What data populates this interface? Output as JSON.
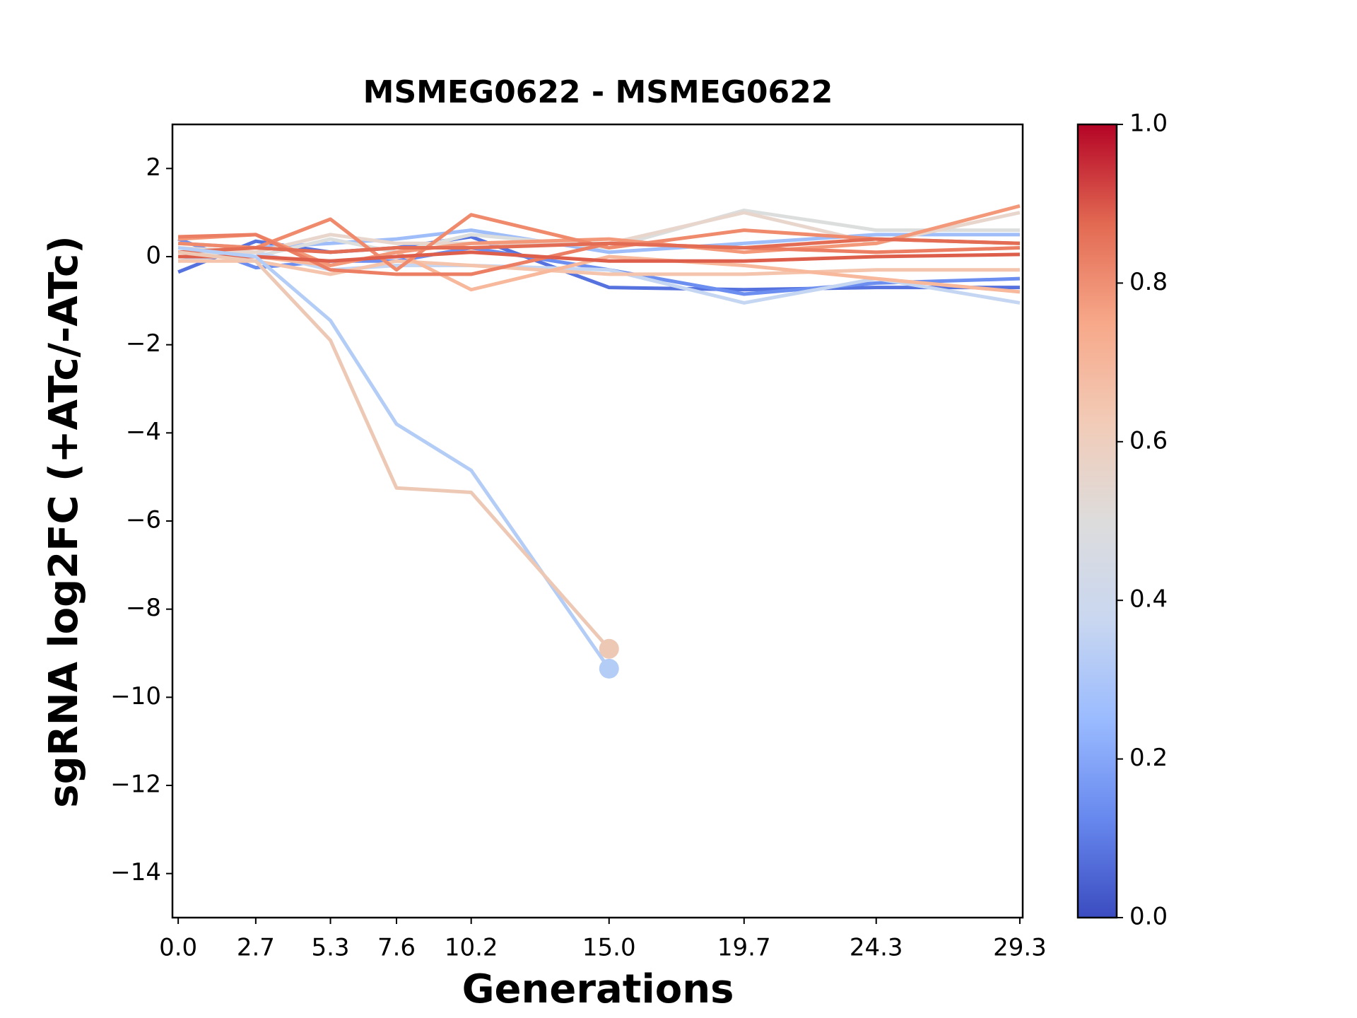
{
  "chart_data": {
    "type": "line",
    "title": "MSMEG0622 - MSMEG0622",
    "x_label": "Generations",
    "y_label": "sgRNA log2FC (+ATc/-ATc)",
    "x": [
      0,
      2.7,
      5.3,
      7.6,
      10.2,
      15,
      19.7,
      24.3,
      29.3
    ],
    "xlim": [
      -0.2,
      29.4
    ],
    "xticks": [
      {
        "value": 0,
        "label": "0.0"
      },
      2.7,
      5.3,
      7.6,
      10.2,
      {
        "value": 15,
        "label": "15.0"
      },
      19.7,
      24.3,
      29.3
    ],
    "ylim": [
      -15,
      3
    ],
    "yticks": [
      {
        "value": -14,
        "label": "−14"
      },
      {
        "value": -12,
        "label": "−12"
      },
      {
        "value": -10,
        "label": "−10"
      },
      {
        "value": -8,
        "label": "−8"
      },
      {
        "value": -6,
        "label": "−6"
      },
      {
        "value": -4,
        "label": "−4"
      },
      {
        "value": -2,
        "label": "−2"
      },
      0,
      2
    ],
    "series": [
      {
        "color": "#5572df",
        "values": [
          -0.35,
          0.35,
          0.1,
          0.2,
          0.45,
          -0.7,
          -0.75,
          -0.7,
          -0.7
        ]
      },
      {
        "color": "#6b8ef0",
        "values": [
          0.4,
          -0.25,
          -0.1,
          -0.1,
          0.2,
          -0.3,
          -0.85,
          -0.6,
          -0.5
        ]
      },
      {
        "color": "#9ebdf9",
        "values": [
          0.3,
          0.2,
          0.3,
          0.4,
          0.6,
          0.1,
          0.3,
          0.5,
          0.5
        ]
      },
      {
        "color": "#dcdddd",
        "values": [
          0.1,
          0.0,
          0.4,
          0.1,
          0.5,
          0.2,
          1.05,
          0.6,
          0.6
        ]
      },
      {
        "color": "#c5d6f2",
        "values": [
          -0.1,
          0.1,
          -0.3,
          -0.2,
          -0.2,
          -0.3,
          -1.05,
          -0.5,
          -1.05
        ]
      },
      {
        "color": "#e8d6cc",
        "values": [
          0.2,
          0.1,
          0.5,
          0.3,
          0.3,
          0.3,
          1.0,
          0.3,
          1.0
        ]
      },
      {
        "color": "#f5c4ac",
        "values": [
          -0.1,
          -0.1,
          -0.4,
          -0.1,
          -0.2,
          -0.4,
          -0.4,
          -0.3,
          -0.3
        ]
      },
      {
        "color": "#f7b89c",
        "values": [
          0.0,
          0.0,
          -0.2,
          0.1,
          -0.75,
          0.0,
          -0.2,
          -0.5,
          -0.8
        ]
      },
      {
        "color": "#f4987a",
        "values": [
          0.4,
          0.5,
          -0.2,
          0.1,
          0.3,
          0.4,
          0.1,
          0.3,
          1.15
        ]
      },
      {
        "color": "#f08a6c",
        "values": [
          0.3,
          0.2,
          0.85,
          -0.3,
          0.95,
          0.2,
          0.6,
          0.4,
          0.3
        ]
      },
      {
        "color": "#ec7f63",
        "values": [
          0.45,
          0.5,
          -0.3,
          -0.4,
          -0.4,
          0.3,
          0.2,
          0.1,
          0.2
        ]
      },
      {
        "color": "#e36c55",
        "values": [
          0.1,
          0.2,
          0.1,
          0.2,
          0.2,
          0.3,
          0.2,
          0.4,
          0.3
        ]
      },
      {
        "color": "#dd5f4b",
        "values": [
          0.0,
          0.0,
          -0.1,
          0.0,
          0.1,
          -0.1,
          -0.1,
          0.0,
          0.05
        ]
      },
      {
        "color": "#b3cdf6",
        "end_marker": true,
        "values": [
          0.2,
          0.0,
          -1.45,
          -3.8,
          -4.85,
          -9.35,
          null,
          null,
          null
        ]
      },
      {
        "color": "#edc8b5",
        "end_marker": true,
        "values": [
          0.1,
          -0.1,
          -1.9,
          -5.25,
          -5.35,
          -8.9,
          null,
          null,
          null
        ]
      }
    ],
    "colorbar": {
      "lim": [
        0,
        1
      ],
      "ticks": [
        {
          "value": 0,
          "label": "0.0"
        },
        {
          "value": 0.2,
          "label": "0.2"
        },
        {
          "value": 0.4,
          "label": "0.4"
        },
        {
          "value": 0.6,
          "label": "0.6"
        },
        {
          "value": 0.8,
          "label": "0.8"
        },
        {
          "value": 1,
          "label": "1.0"
        }
      ],
      "colors": [
        "#3b4cc0",
        "#6788ee",
        "#9abbff",
        "#c9d7f0",
        "#dddcdc",
        "#f2cbb7",
        "#f7a889",
        "#e26952",
        "#b40426"
      ]
    }
  }
}
